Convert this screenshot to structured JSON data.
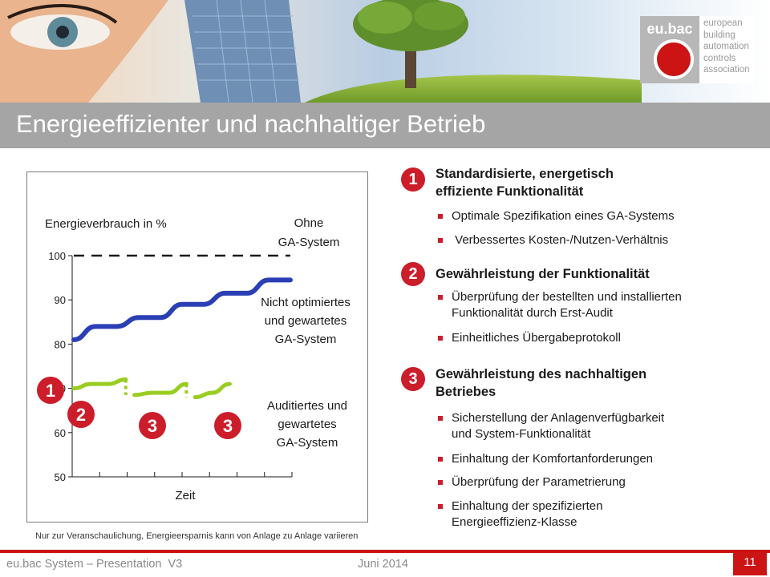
{
  "header": {
    "title": "Energieeffizienter und nachhaltiger Betrieb",
    "logo_label": "eu.bac",
    "logo_lines": [
      "european",
      "building",
      "automation",
      "controls",
      "association"
    ]
  },
  "chart": {
    "ylabel": "Energieverbrauch in %",
    "xlabel": "Zeit",
    "label_ohne": [
      "Ohne",
      "GA-System"
    ],
    "label_nicht": [
      "Nicht optimiertes",
      "und gewartetes",
      "GA-System"
    ],
    "label_audit": [
      "Auditiertes und",
      "gewartetes",
      "GA-System"
    ],
    "markers": [
      "1",
      "2",
      "3",
      "3"
    ]
  },
  "chart_data": {
    "type": "line",
    "ylabel": "Energieverbrauch in %",
    "xlabel": "Zeit",
    "ylim": [
      50,
      100
    ],
    "yticks": [
      100,
      90,
      80,
      70,
      60,
      50
    ],
    "series": [
      {
        "name": "Ohne GA-System",
        "style": "dashed",
        "color": "#1a1a1a",
        "x": [
          0,
          10
        ],
        "values": [
          100,
          100
        ]
      },
      {
        "name": "Nicht optimiertes und gewartetes GA-System",
        "style": "solid",
        "color": "#2b3fb5",
        "x": [
          0,
          1,
          2,
          3,
          4,
          5,
          6,
          7,
          8,
          9,
          10
        ],
        "values": [
          81,
          84,
          84,
          86,
          86,
          89,
          89,
          91.5,
          91.5,
          94.5,
          94.5
        ]
      },
      {
        "name": "Auditiertes und gewartetes GA-System",
        "style": "solid",
        "color": "#9acd22",
        "x": [
          0,
          0.8,
          1.6,
          2.4,
          2.6,
          2.8,
          3.6,
          4.4,
          5.2,
          5.4,
          5.6,
          6.4,
          7.2
        ],
        "values": [
          70,
          71,
          71,
          72,
          69,
          68.5,
          69,
          69,
          71,
          68,
          68,
          69,
          71
        ]
      }
    ]
  },
  "right": {
    "sections": [
      {
        "num": "1",
        "title": [
          "Standardisierte, energetisch",
          "effiziente Funktionalität"
        ],
        "bullets": [
          [
            "Optimale Spezifikation eines GA-Systems"
          ],
          [
            " Verbessertes Kosten-/Nutzen-Verhältnis"
          ]
        ]
      },
      {
        "num": "2",
        "title": [
          "Gewährleistung der Funktionalität"
        ],
        "bullets": [
          [
            "Überprüfung der bestellten und installierten",
            "Funktionalität durch Erst-Audit"
          ],
          [
            "Einheitliches Übergabeprotokoll"
          ]
        ]
      },
      {
        "num": "3",
        "title": [
          "Gewährleistung des nachhaltigen",
          "Betriebes"
        ],
        "bullets": [
          [
            "Sicherstellung der Anlagenverfügbarkeit",
            "und System-Funktionalität"
          ],
          [
            "Einhaltung der Komfortanforderungen"
          ],
          [
            "Überprüfung der Parametrierung"
          ],
          [
            "Einhaltung der spezifizierten",
            "Energieeffizienz-Klasse"
          ]
        ]
      }
    ]
  },
  "footer": {
    "footnote": "Nur zur Veranschaulichung, Energieersparnis kann von Anlage zu Anlage variieren",
    "left": "eu.bac System – Presentation  V3",
    "date": "Juni 2014",
    "page": "11"
  },
  "colors": {
    "accent": "#cc1414",
    "blue_line": "#2b3fb5",
    "green_line": "#9acd22",
    "title_bar": "#a5a5a5"
  }
}
